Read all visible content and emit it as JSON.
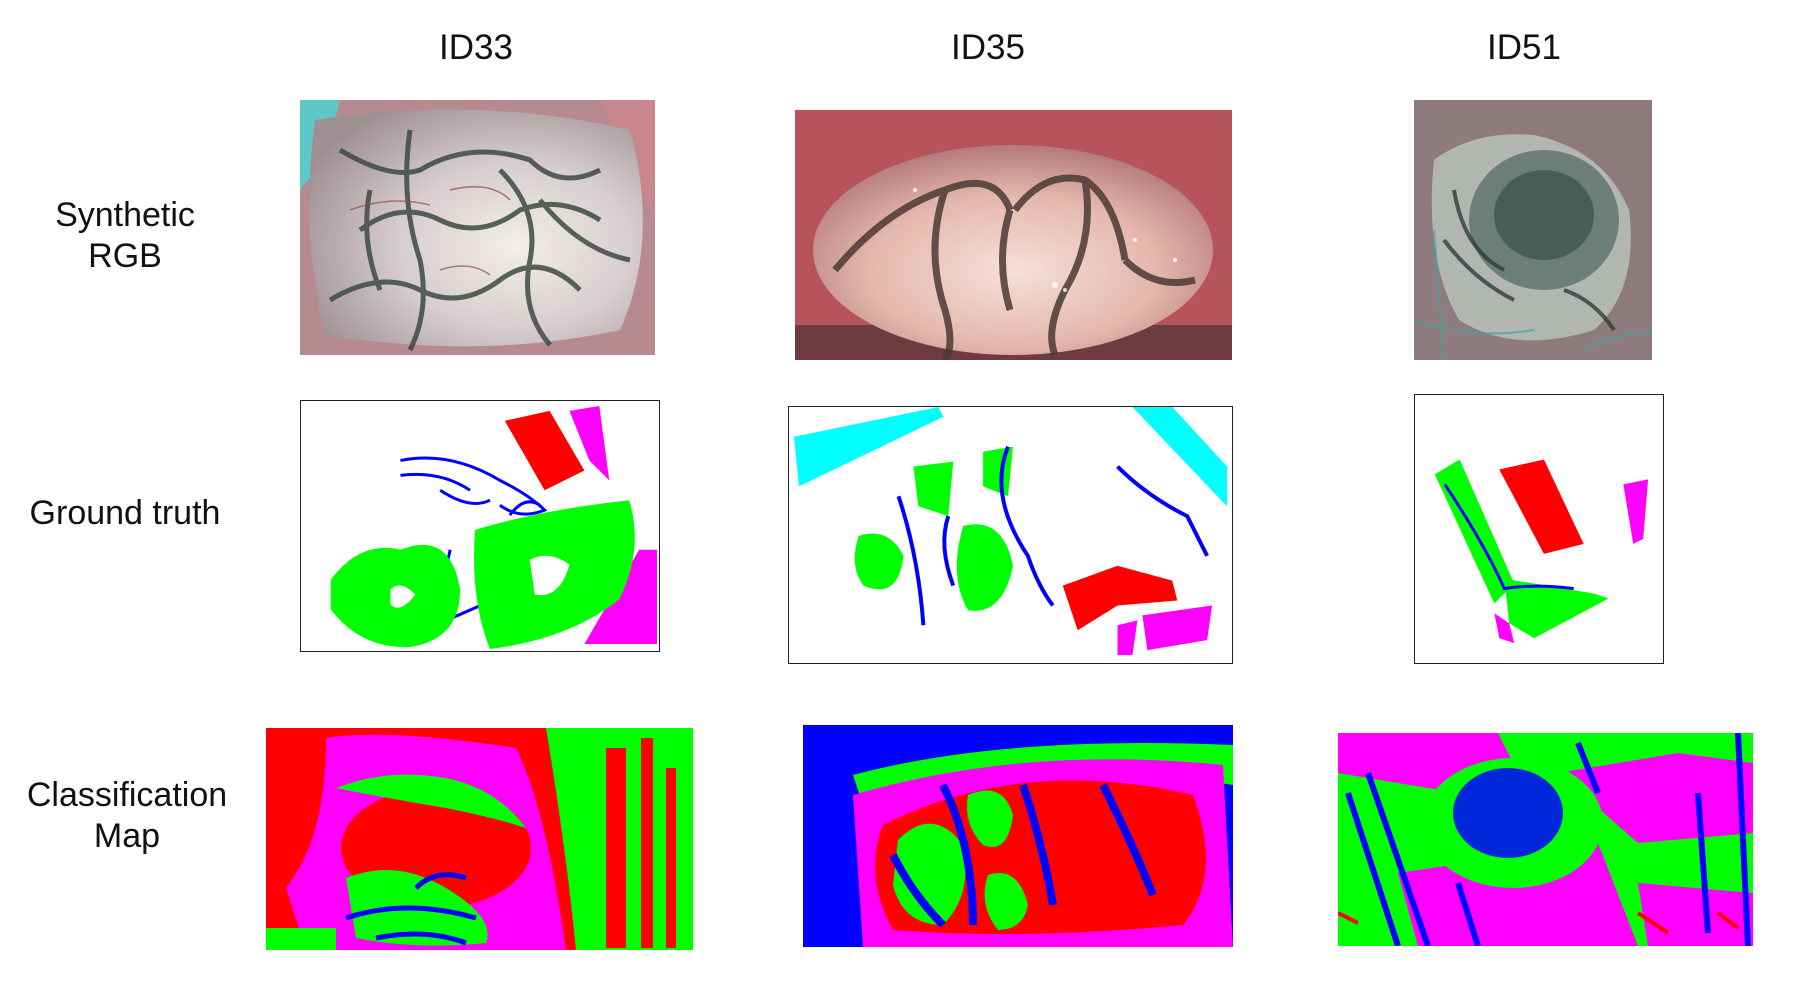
{
  "columns": [
    {
      "id": "ID33"
    },
    {
      "id": "ID35"
    },
    {
      "id": "ID51"
    }
  ],
  "rows": {
    "synthetic_rgb": {
      "label_line1": "Synthetic",
      "label_line2": "RGB"
    },
    "ground_truth": {
      "label": "Ground truth"
    },
    "classification_map": {
      "label_line1": "Classification",
      "label_line2": "Map"
    }
  },
  "palette": {
    "tumor": "#ff0000",
    "normal": "#00ff00",
    "vessel": "#0000ff",
    "background": "#ff00ff",
    "other": "#00ffff"
  }
}
